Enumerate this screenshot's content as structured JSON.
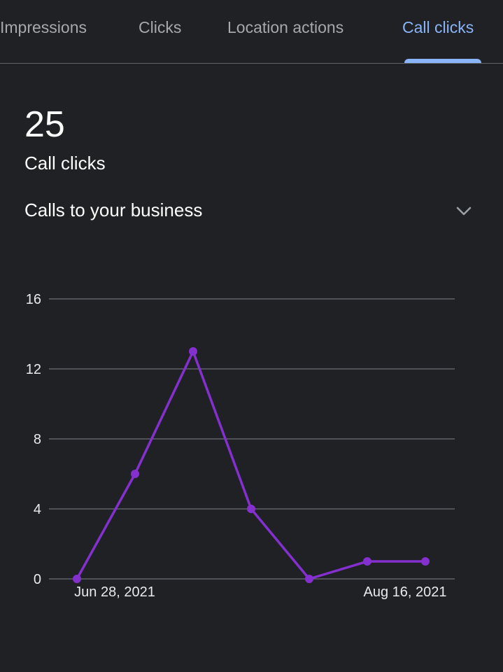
{
  "tabs": [
    {
      "label": "Impressions",
      "active": false
    },
    {
      "label": "Clicks",
      "active": false
    },
    {
      "label": "Location actions",
      "active": false
    },
    {
      "label": "Call clicks",
      "active": true
    }
  ],
  "summary": {
    "value": "25",
    "label": "Call clicks"
  },
  "section": {
    "title": "Calls to your business",
    "toggle_icon": "chevron-down-icon"
  },
  "colors": {
    "background": "#202124",
    "accent": "#8ab4f8",
    "series": "#8430ce",
    "gridline": "#5f6368"
  },
  "chart_data": {
    "type": "line",
    "x": [
      "Jun 28, 2021",
      "",
      "",
      "",
      "",
      "Aug 16, 2021",
      ""
    ],
    "x_tick_labels": [
      "Jun 28, 2021",
      "Aug 16, 2021"
    ],
    "series": [
      {
        "values": [
          0,
          6,
          13,
          4,
          0,
          1,
          1
        ]
      }
    ],
    "y_ticks": [
      0,
      4,
      8,
      12,
      16
    ],
    "ylim": [
      0,
      16
    ],
    "grid": true,
    "title": "",
    "xlabel": "",
    "ylabel": ""
  }
}
